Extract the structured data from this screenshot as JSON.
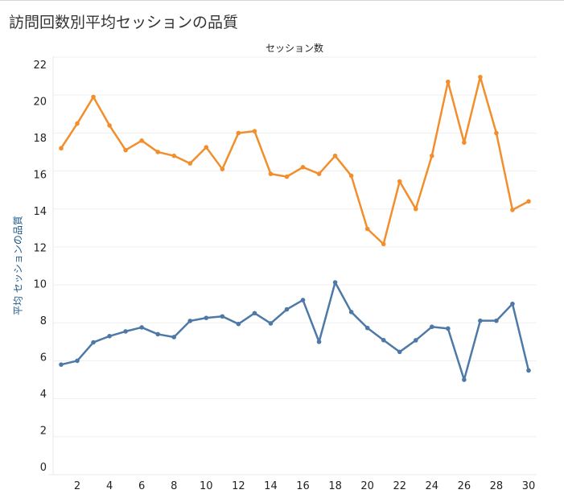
{
  "chart_data": {
    "type": "line",
    "title": "訪問回数別平均セッションの品質",
    "xlabel": "セッション数",
    "ylabel": "平均 セッションの品質",
    "x": [
      1,
      2,
      3,
      4,
      5,
      6,
      7,
      8,
      9,
      10,
      11,
      12,
      13,
      14,
      15,
      16,
      17,
      18,
      19,
      20,
      21,
      22,
      23,
      24,
      25,
      26,
      27,
      28,
      29,
      30
    ],
    "x_ticks": [
      2,
      4,
      6,
      8,
      10,
      12,
      14,
      16,
      18,
      20,
      22,
      24,
      26,
      28,
      30
    ],
    "y_ticks": [
      0,
      2,
      4,
      6,
      8,
      10,
      12,
      14,
      16,
      18,
      20,
      22
    ],
    "ylim": [
      0,
      22
    ],
    "xlim": [
      0.5,
      30.5
    ],
    "grid": "horizontal",
    "series": [
      {
        "color": "#f28e2b",
        "values": [
          17.2,
          18.5,
          19.9,
          18.4,
          17.1,
          17.6,
          17.0,
          16.8,
          16.4,
          17.25,
          16.1,
          18.0,
          18.1,
          15.85,
          15.7,
          16.2,
          15.85,
          16.8,
          15.75,
          12.95,
          12.15,
          15.45,
          14.0,
          16.8,
          20.7,
          17.5,
          20.95,
          18.0,
          13.95,
          14.4
        ]
      },
      {
        "color": "#4e79a7",
        "values": [
          5.8,
          6.0,
          6.97,
          7.3,
          7.55,
          7.76,
          7.4,
          7.25,
          8.1,
          8.26,
          8.34,
          7.94,
          8.51,
          7.97,
          8.71,
          9.2,
          7.0,
          10.13,
          8.57,
          7.73,
          7.09,
          6.47,
          7.08,
          7.79,
          7.7,
          5.0,
          8.11,
          8.11,
          9.0,
          5.49
        ]
      }
    ]
  }
}
